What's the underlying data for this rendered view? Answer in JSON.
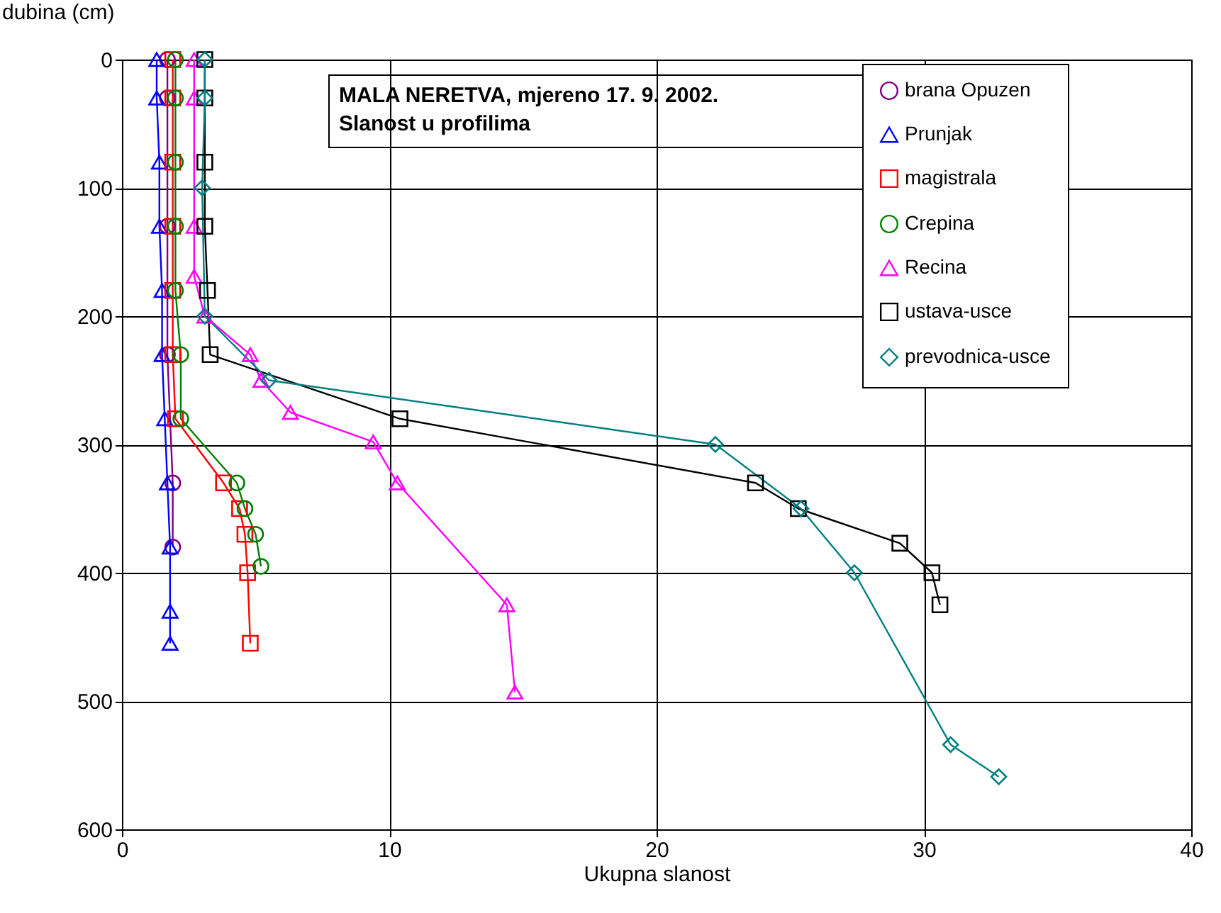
{
  "chart_data": {
    "type": "line",
    "title": "MALA NERETVA, mjereno 17. 9. 2002.",
    "subtitle": "Slanost u profilima",
    "xlabel": "Ukupna slanost",
    "ylabel": "dubina (cm)",
    "xlim": [
      0,
      40
    ],
    "xticks": [
      0,
      10,
      20,
      30,
      40
    ],
    "ylim": [
      600,
      0
    ],
    "yticks": [
      0,
      100,
      200,
      300,
      400,
      500,
      600
    ],
    "grid": true,
    "legend": "top right",
    "series": [
      {
        "name": "brana Opuzen",
        "color": "#800080",
        "marker": "circle",
        "x": [
          1.7,
          1.7,
          1.7,
          1.7,
          1.9,
          1.9
        ],
        "values": [
          0,
          30,
          130,
          230,
          330,
          380
        ]
      },
      {
        "name": "Prunjak",
        "color": "#0000ff",
        "marker": "triangle",
        "x": [
          1.3,
          1.3,
          1.4,
          1.4,
          1.5,
          1.5,
          1.6,
          1.7,
          1.8,
          1.8,
          1.8
        ],
        "values": [
          0,
          30,
          80,
          130,
          180,
          230,
          280,
          330,
          380,
          430,
          455
        ]
      },
      {
        "name": "magistrala",
        "color": "#ff0000",
        "marker": "square",
        "x": [
          1.9,
          1.9,
          1.9,
          1.9,
          1.9,
          1.9,
          2.0,
          3.8,
          4.4,
          4.6,
          4.7,
          4.8
        ],
        "values": [
          0,
          30,
          80,
          130,
          180,
          230,
          280,
          330,
          350,
          370,
          400,
          455
        ]
      },
      {
        "name": "Crepina",
        "color": "#008000",
        "marker": "circle",
        "x": [
          2.0,
          2.0,
          2.0,
          2.0,
          2.0,
          2.2,
          2.2,
          4.3,
          4.6,
          5.0,
          5.2
        ],
        "values": [
          0,
          30,
          80,
          130,
          180,
          230,
          280,
          330,
          350,
          370,
          395
        ]
      },
      {
        "name": "Recina",
        "color": "#ff00ff",
        "marker": "triangle",
        "x": [
          2.7,
          2.7,
          2.7,
          2.7,
          3.1,
          4.8,
          5.2,
          6.3,
          9.4,
          10.3,
          14.4,
          14.7
        ],
        "values": [
          0,
          30,
          130,
          169,
          200,
          230,
          250,
          275,
          298,
          330,
          425,
          493
        ]
      },
      {
        "name": "ustava-usce",
        "color": "#000000",
        "marker": "square",
        "x": [
          3.1,
          3.1,
          3.1,
          3.1,
          3.2,
          3.3,
          10.4,
          23.7,
          25.3,
          29.1,
          30.3,
          30.6
        ],
        "values": [
          0,
          30,
          80,
          130,
          180,
          230,
          280,
          330,
          350,
          377,
          400,
          425
        ]
      },
      {
        "name": "prevodnica-usce",
        "color": "#008080",
        "marker": "diamond",
        "x": [
          3.1,
          3.1,
          3.0,
          3.1,
          5.5,
          22.2,
          25.4,
          27.4,
          31.0,
          32.8
        ],
        "values": [
          0,
          30,
          100,
          200,
          250,
          300,
          350,
          400,
          534,
          559
        ]
      }
    ]
  }
}
